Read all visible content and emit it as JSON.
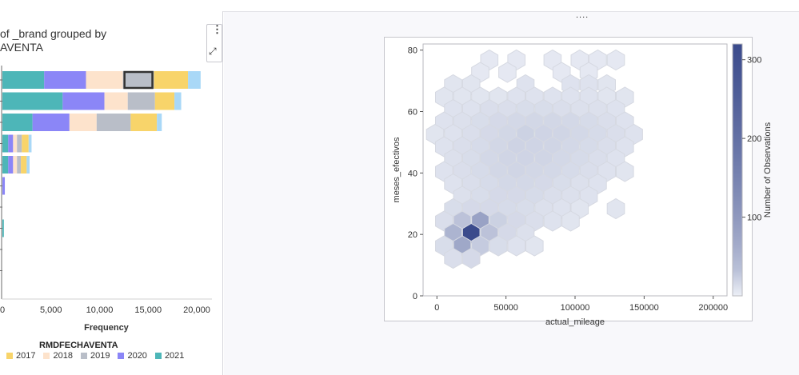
{
  "left_panel": {
    "title": "of _brand grouped by\nAVENTA",
    "xlabel": "Frequency",
    "legend_title": "RMDFECHAVENTA"
  },
  "right_panel": {
    "drag_handle": "...."
  },
  "colors": {
    "2017": "#f8d46a",
    "2018": "#fde3cc",
    "2019": "#b9bec8",
    "2020": "#8b86f7",
    "2021": "#4db6b8",
    "extra": "#a9d8f7",
    "hex_low": "#eceff6",
    "hex_high": "#3b4b8c"
  },
  "chart_data": [
    {
      "type": "bar",
      "orientation": "horizontal",
      "stacked": true,
      "xlabel": "Frequency",
      "xlim": [
        0,
        21000
      ],
      "xticks": [
        "0",
        "5,000",
        "10,000",
        "15,000",
        "20,000"
      ],
      "legend": {
        "title": "RMDFECHAVENTA",
        "entries": [
          "2017",
          "2018",
          "2019",
          "2020",
          "2021"
        ]
      },
      "series_order": [
        "2021",
        "2020",
        "2018",
        "2019",
        "2017",
        "extra"
      ],
      "rows": [
        {
          "2021": 4300,
          "2020": 4300,
          "2018": 3800,
          "2019": 3200,
          "2017": 3500,
          "extra": 1300
        },
        {
          "2021": 6200,
          "2020": 4300,
          "2019": 2800,
          "2018": 2400,
          "2017": 2000,
          "extra": 700
        },
        {
          "2019": 3500,
          "2020": 3800,
          "2021": 3100,
          "2018": 2800,
          "2017": 2700,
          "extra": 500
        },
        {
          "2021": 600,
          "2020": 500,
          "2019": 500,
          "2018": 400,
          "2017": 700,
          "extra": 300
        },
        {
          "2020": 500,
          "2019": 400,
          "2021": 600,
          "2018": 400,
          "2017": 600,
          "extra": 300
        },
        {
          "2020": 250
        },
        {
          "2021": 0
        },
        {
          "2021": 150
        },
        {
          "2021": 0
        },
        {
          "2021": 0
        }
      ],
      "selected": {
        "row": 0,
        "series": "2019"
      }
    },
    {
      "type": "heatmap",
      "subtype": "hexbin",
      "xlabel": "actual_mileage",
      "ylabel": "meses_efectivos",
      "xlim": [
        -10000,
        210000
      ],
      "ylim": [
        0,
        82
      ],
      "xticks": [
        0,
        50000,
        100000,
        150000,
        200000
      ],
      "yticks": [
        0,
        20,
        40,
        60,
        80
      ],
      "colorbar": {
        "label": "Number of Observations",
        "range": [
          0,
          320
        ],
        "ticks": [
          100,
          200,
          300
        ]
      },
      "hex_col_width": 13000,
      "hex_row_height": 5.0,
      "bins": [
        {
          "c": 6,
          "r": 0,
          "v": 1
        },
        {
          "c": 9,
          "r": 0,
          "v": 1
        },
        {
          "c": 13,
          "r": 0,
          "v": 1
        },
        {
          "c": 16,
          "r": 0,
          "v": 1
        },
        {
          "c": 18,
          "r": 0,
          "v": 1
        },
        {
          "c": 20,
          "r": 0,
          "v": 1
        },
        {
          "c": 5,
          "r": 1,
          "v": 1
        },
        {
          "c": 8,
          "r": 1,
          "v": 1
        },
        {
          "c": 14,
          "r": 1,
          "v": 1
        },
        {
          "c": 17,
          "r": 1,
          "v": 1
        },
        {
          "c": 2,
          "r": 2,
          "v": 2
        },
        {
          "c": 4,
          "r": 2,
          "v": 2
        },
        {
          "c": 10,
          "r": 2,
          "v": 3
        },
        {
          "c": 15,
          "r": 2,
          "v": 3
        },
        {
          "c": 17,
          "r": 2,
          "v": 3
        },
        {
          "c": 19,
          "r": 2,
          "v": 2
        },
        {
          "c": 1,
          "r": 3,
          "v": 2
        },
        {
          "c": 3,
          "r": 3,
          "v": 2
        },
        {
          "c": 5,
          "r": 3,
          "v": 2
        },
        {
          "c": 7,
          "r": 3,
          "v": 2
        },
        {
          "c": 9,
          "r": 3,
          "v": 3
        },
        {
          "c": 11,
          "r": 3,
          "v": 3
        },
        {
          "c": 13,
          "r": 3,
          "v": 3
        },
        {
          "c": 15,
          "r": 3,
          "v": 3
        },
        {
          "c": 17,
          "r": 3,
          "v": 3
        },
        {
          "c": 19,
          "r": 3,
          "v": 2
        },
        {
          "c": 21,
          "r": 3,
          "v": 2
        },
        {
          "c": 2,
          "r": 4,
          "v": 3
        },
        {
          "c": 4,
          "r": 4,
          "v": 3
        },
        {
          "c": 6,
          "r": 4,
          "v": 5
        },
        {
          "c": 8,
          "r": 4,
          "v": 5
        },
        {
          "c": 10,
          "r": 4,
          "v": 6
        },
        {
          "c": 12,
          "r": 4,
          "v": 6
        },
        {
          "c": 14,
          "r": 4,
          "v": 5
        },
        {
          "c": 16,
          "r": 4,
          "v": 4
        },
        {
          "c": 18,
          "r": 4,
          "v": 4
        },
        {
          "c": 20,
          "r": 4,
          "v": 3
        },
        {
          "c": 1,
          "r": 5,
          "v": 3
        },
        {
          "c": 3,
          "r": 5,
          "v": 4
        },
        {
          "c": 5,
          "r": 5,
          "v": 6
        },
        {
          "c": 7,
          "r": 5,
          "v": 8
        },
        {
          "c": 9,
          "r": 5,
          "v": 9
        },
        {
          "c": 11,
          "r": 5,
          "v": 10
        },
        {
          "c": 13,
          "r": 5,
          "v": 10
        },
        {
          "c": 15,
          "r": 5,
          "v": 9
        },
        {
          "c": 17,
          "r": 5,
          "v": 7
        },
        {
          "c": 19,
          "r": 5,
          "v": 5
        },
        {
          "c": 21,
          "r": 5,
          "v": 3
        },
        {
          "c": 0,
          "r": 6,
          "v": 2
        },
        {
          "c": 2,
          "r": 6,
          "v": 3
        },
        {
          "c": 4,
          "r": 6,
          "v": 5
        },
        {
          "c": 6,
          "r": 6,
          "v": 8
        },
        {
          "c": 8,
          "r": 6,
          "v": 10
        },
        {
          "c": 10,
          "r": 6,
          "v": 14
        },
        {
          "c": 12,
          "r": 6,
          "v": 12
        },
        {
          "c": 14,
          "r": 6,
          "v": 11
        },
        {
          "c": 16,
          "r": 6,
          "v": 9
        },
        {
          "c": 18,
          "r": 6,
          "v": 7
        },
        {
          "c": 20,
          "r": 6,
          "v": 5
        },
        {
          "c": 22,
          "r": 6,
          "v": 3
        },
        {
          "c": 1,
          "r": 7,
          "v": 3
        },
        {
          "c": 3,
          "r": 7,
          "v": 5
        },
        {
          "c": 5,
          "r": 7,
          "v": 7
        },
        {
          "c": 7,
          "r": 7,
          "v": 10
        },
        {
          "c": 9,
          "r": 7,
          "v": 13
        },
        {
          "c": 11,
          "r": 7,
          "v": 12
        },
        {
          "c": 13,
          "r": 7,
          "v": 11
        },
        {
          "c": 15,
          "r": 7,
          "v": 9
        },
        {
          "c": 17,
          "r": 7,
          "v": 7
        },
        {
          "c": 19,
          "r": 7,
          "v": 5
        },
        {
          "c": 21,
          "r": 7,
          "v": 3
        },
        {
          "c": 2,
          "r": 8,
          "v": 4
        },
        {
          "c": 4,
          "r": 8,
          "v": 6
        },
        {
          "c": 6,
          "r": 8,
          "v": 9
        },
        {
          "c": 8,
          "r": 8,
          "v": 11
        },
        {
          "c": 10,
          "r": 8,
          "v": 12
        },
        {
          "c": 12,
          "r": 8,
          "v": 11
        },
        {
          "c": 14,
          "r": 8,
          "v": 9
        },
        {
          "c": 16,
          "r": 8,
          "v": 7
        },
        {
          "c": 18,
          "r": 8,
          "v": 5
        },
        {
          "c": 20,
          "r": 8,
          "v": 3
        },
        {
          "c": 1,
          "r": 9,
          "v": 3
        },
        {
          "c": 3,
          "r": 9,
          "v": 5
        },
        {
          "c": 5,
          "r": 9,
          "v": 7
        },
        {
          "c": 7,
          "r": 9,
          "v": 10
        },
        {
          "c": 9,
          "r": 9,
          "v": 11
        },
        {
          "c": 11,
          "r": 9,
          "v": 10
        },
        {
          "c": 13,
          "r": 9,
          "v": 9
        },
        {
          "c": 15,
          "r": 9,
          "v": 7
        },
        {
          "c": 17,
          "r": 9,
          "v": 5
        },
        {
          "c": 19,
          "r": 9,
          "v": 3
        },
        {
          "c": 21,
          "r": 9,
          "v": 2
        },
        {
          "c": 2,
          "r": 10,
          "v": 3
        },
        {
          "c": 4,
          "r": 10,
          "v": 5
        },
        {
          "c": 6,
          "r": 10,
          "v": 7
        },
        {
          "c": 8,
          "r": 10,
          "v": 9
        },
        {
          "c": 10,
          "r": 10,
          "v": 9
        },
        {
          "c": 12,
          "r": 10,
          "v": 8
        },
        {
          "c": 14,
          "r": 10,
          "v": 6
        },
        {
          "c": 16,
          "r": 10,
          "v": 4
        },
        {
          "c": 18,
          "r": 10,
          "v": 3
        },
        {
          "c": 3,
          "r": 11,
          "v": 4
        },
        {
          "c": 5,
          "r": 11,
          "v": 6
        },
        {
          "c": 7,
          "r": 11,
          "v": 8
        },
        {
          "c": 9,
          "r": 11,
          "v": 8
        },
        {
          "c": 11,
          "r": 11,
          "v": 7
        },
        {
          "c": 13,
          "r": 11,
          "v": 5
        },
        {
          "c": 15,
          "r": 11,
          "v": 4
        },
        {
          "c": 17,
          "r": 11,
          "v": 3
        },
        {
          "c": 2,
          "r": 12,
          "v": 6
        },
        {
          "c": 4,
          "r": 12,
          "v": 8
        },
        {
          "c": 6,
          "r": 12,
          "v": 8
        },
        {
          "c": 8,
          "r": 12,
          "v": 7
        },
        {
          "c": 10,
          "r": 12,
          "v": 6
        },
        {
          "c": 12,
          "r": 12,
          "v": 4
        },
        {
          "c": 14,
          "r": 12,
          "v": 3
        },
        {
          "c": 16,
          "r": 12,
          "v": 2
        },
        {
          "c": 20,
          "r": 12,
          "v": 2
        },
        {
          "c": 1,
          "r": 13,
          "v": 5
        },
        {
          "c": 3,
          "r": 13,
          "v": 30
        },
        {
          "c": 5,
          "r": 13,
          "v": 80
        },
        {
          "c": 7,
          "r": 13,
          "v": 15
        },
        {
          "c": 9,
          "r": 13,
          "v": 8
        },
        {
          "c": 11,
          "r": 13,
          "v": 5
        },
        {
          "c": 13,
          "r": 13,
          "v": 3
        },
        {
          "c": 15,
          "r": 13,
          "v": 2
        },
        {
          "c": 2,
          "r": 14,
          "v": 50
        },
        {
          "c": 4,
          "r": 14,
          "v": 320
        },
        {
          "c": 6,
          "r": 14,
          "v": 30
        },
        {
          "c": 8,
          "r": 14,
          "v": 8
        },
        {
          "c": 10,
          "r": 14,
          "v": 4
        },
        {
          "c": 1,
          "r": 15,
          "v": 6
        },
        {
          "c": 3,
          "r": 15,
          "v": 70
        },
        {
          "c": 5,
          "r": 15,
          "v": 20
        },
        {
          "c": 7,
          "r": 15,
          "v": 6
        },
        {
          "c": 9,
          "r": 15,
          "v": 3
        },
        {
          "c": 11,
          "r": 15,
          "v": 2
        },
        {
          "c": 2,
          "r": 16,
          "v": 5
        },
        {
          "c": 4,
          "r": 16,
          "v": 8
        }
      ]
    }
  ]
}
